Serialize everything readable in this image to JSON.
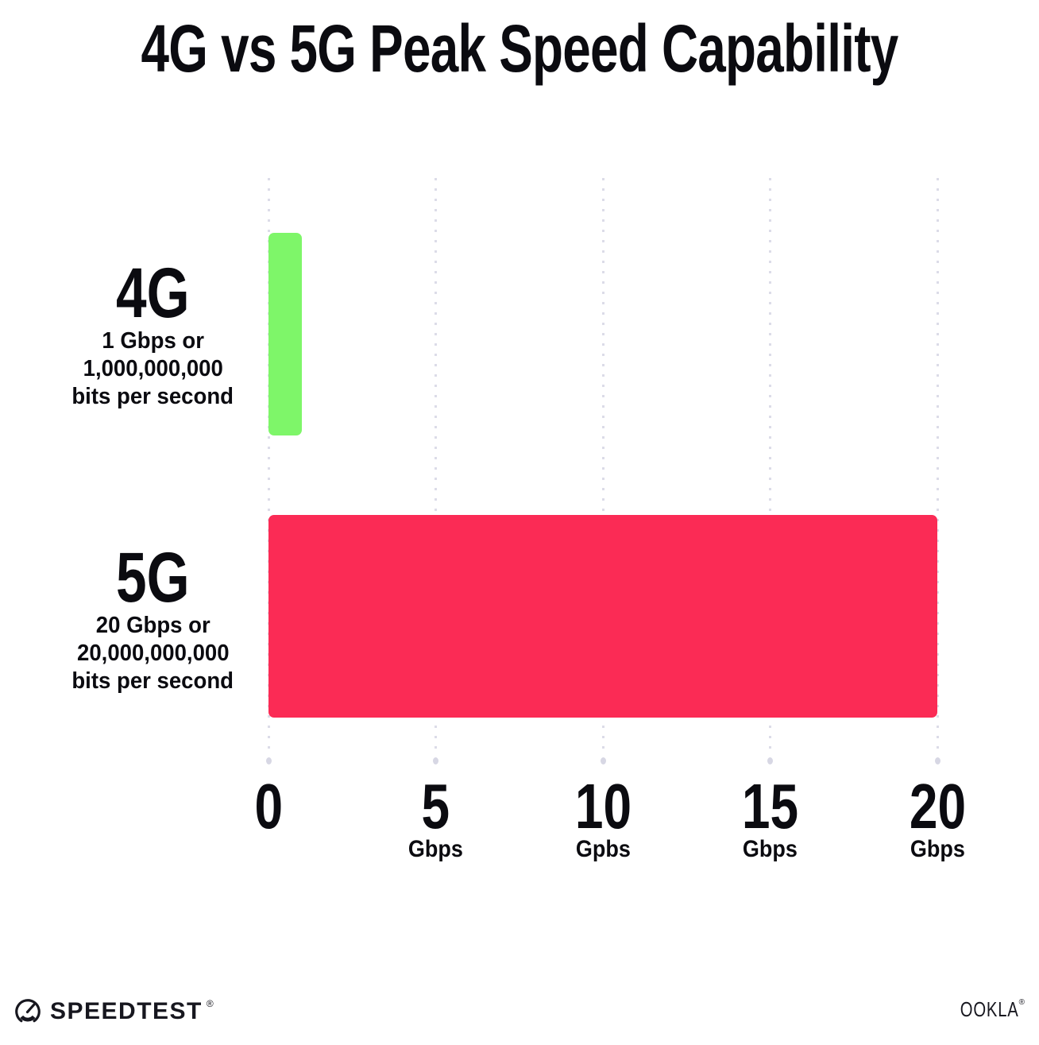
{
  "chart_data": {
    "type": "bar",
    "orientation": "horizontal",
    "title": "4G vs 5G Peak Speed Capability",
    "xlabel": "Gbps",
    "xlim": [
      0,
      20
    ],
    "grid": "vertical-dotted",
    "gridline_color": "#dcdce8",
    "categories": [
      "4G",
      "5G"
    ],
    "values": [
      1,
      20
    ],
    "bars": [
      {
        "label": "4G",
        "value": 1,
        "color": "#7EF669",
        "sublabel_lines": [
          "1 Gbps or",
          "1,000,000,000",
          "bits per second"
        ]
      },
      {
        "label": "5G",
        "value": 20,
        "color": "#FB2B55",
        "sublabel_lines": [
          "20 Gbps or",
          "20,000,000,000",
          "bits per second"
        ]
      }
    ],
    "x_ticks": [
      {
        "value": 0,
        "label": "0",
        "unit": ""
      },
      {
        "value": 5,
        "label": "5",
        "unit": "Gbps"
      },
      {
        "value": 10,
        "label": "10",
        "unit": "Gpbs"
      },
      {
        "value": 15,
        "label": "15",
        "unit": "Gbps"
      },
      {
        "value": 20,
        "label": "20",
        "unit": "Gbps"
      }
    ]
  },
  "footer": {
    "speedtest_text": "SPEEDTEST",
    "speedtest_mark": "®",
    "ookla_text": "OOKLA",
    "ookla_mark": "®"
  }
}
